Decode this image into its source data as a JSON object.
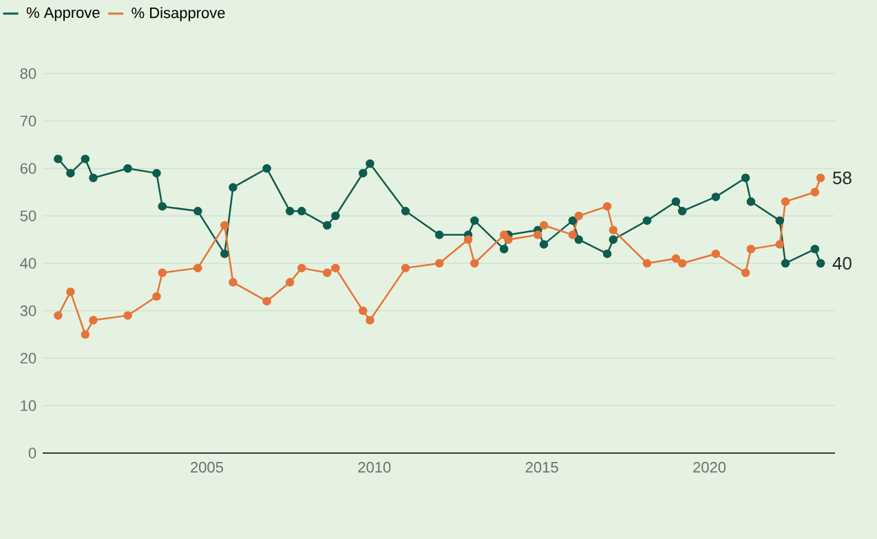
{
  "chart_data": {
    "type": "line",
    "legend": "top left",
    "grid": "y",
    "marker": "circle",
    "line_style": "solid",
    "xlim": [
      2000.1,
      2023.75
    ],
    "ylim": [
      0,
      80
    ],
    "xticks": [
      2005,
      2010,
      2015,
      2020
    ],
    "yticks": [
      0,
      10,
      20,
      30,
      40,
      50,
      60,
      70,
      80
    ],
    "x": [
      2000.56,
      2000.93,
      2001.37,
      2001.61,
      2002.64,
      2003.5,
      2003.67,
      2004.73,
      2005.53,
      2005.78,
      2006.79,
      2007.48,
      2007.83,
      2008.59,
      2008.84,
      2009.66,
      2009.87,
      2010.93,
      2011.94,
      2012.8,
      2012.99,
      2013.87,
      2014.0,
      2014.88,
      2015.06,
      2015.92,
      2016.1,
      2016.95,
      2017.13,
      2018.14,
      2019.0,
      2019.19,
      2020.19,
      2021.08,
      2021.24,
      2022.1,
      2022.27,
      2023.15,
      2023.32
    ],
    "series": [
      {
        "name": "% Approve",
        "color": "#0d5c4d",
        "values": [
          62,
          59,
          62,
          58,
          60,
          59,
          52,
          51,
          42,
          56,
          60,
          51,
          51,
          48,
          50,
          59,
          61,
          51,
          46,
          46,
          49,
          43,
          46,
          47,
          44,
          49,
          45,
          42,
          45,
          49,
          53,
          51,
          54,
          58,
          53,
          49,
          40,
          43,
          40
        ],
        "value_labels": [
          null,
          null,
          null,
          null,
          null,
          null,
          null,
          null,
          null,
          null,
          null,
          null,
          null,
          null,
          null,
          null,
          null,
          null,
          null,
          null,
          null,
          null,
          null,
          null,
          null,
          null,
          null,
          null,
          null,
          null,
          null,
          null,
          null,
          null,
          null,
          null,
          null,
          null,
          "40"
        ]
      },
      {
        "name": "% Disapprove",
        "color": "#e5743b",
        "values": [
          29,
          34,
          25,
          28,
          29,
          33,
          38,
          39,
          48,
          36,
          32,
          36,
          39,
          38,
          39,
          30,
          28,
          39,
          40,
          45,
          40,
          46,
          45,
          46,
          48,
          46,
          50,
          52,
          47,
          40,
          41,
          40,
          42,
          38,
          43,
          44,
          53,
          55,
          58
        ],
        "value_labels": [
          null,
          null,
          null,
          null,
          null,
          null,
          null,
          null,
          null,
          null,
          null,
          null,
          null,
          null,
          null,
          null,
          null,
          null,
          null,
          null,
          null,
          null,
          null,
          null,
          null,
          null,
          null,
          null,
          null,
          null,
          null,
          null,
          null,
          null,
          null,
          null,
          null,
          null,
          "58"
        ]
      }
    ]
  }
}
